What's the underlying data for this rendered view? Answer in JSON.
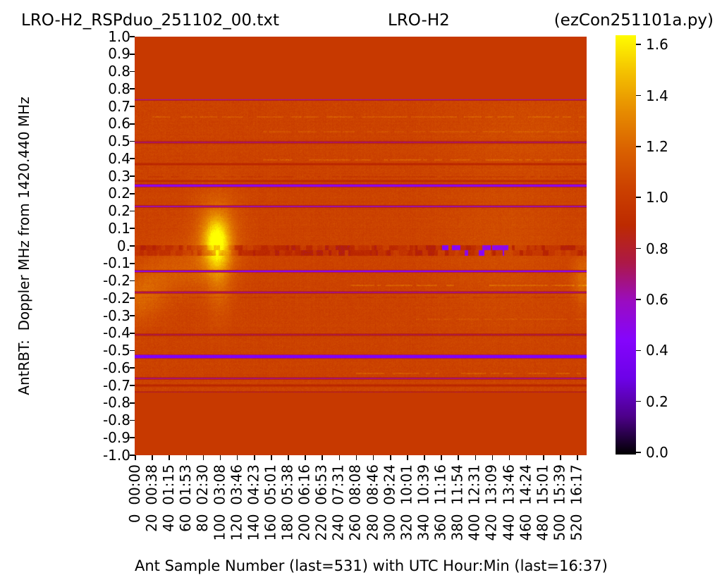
{
  "titles": {
    "left": "LRO-H2_RSPduo_251102_00.txt",
    "center": "LRO-H2",
    "right": "(ezCon251101a.py)"
  },
  "axes": {
    "y_label": "AntRBT:  Doppler MHz from 1420.440 MHz",
    "x_label": "Ant Sample Number (last=531) with UTC Hour:Min (last=16:37)"
  },
  "chart_data": {
    "type": "heatmap",
    "title": "LRO-H2",
    "source_file": "LRO-H2_RSPduo_251102_00.txt",
    "program": "ezCon251101a.py",
    "xlabel": "Ant Sample Number (last=531) with UTC Hour:Min (last=16:37)",
    "ylabel": "AntRBT:  Doppler MHz from 1420.440 MHz",
    "xlim": [
      0,
      531
    ],
    "ylim": [
      -1.0,
      1.0
    ],
    "last_sample": 531,
    "last_time": "16:37",
    "rest_freq_mhz": "1420.440",
    "colormap": "gnuplot",
    "vmin": 0.0,
    "vmax": 1.65,
    "y_tick_labels": [
      "1.0",
      "0.9",
      "0.8",
      "0.8",
      "0.7",
      "0.6",
      "0.5",
      "0.4",
      "0.3",
      "0.2",
      "0.2",
      "0.1",
      "0.",
      "-0.1",
      "-0.2",
      "-0.2",
      "-0.3",
      "-0.4",
      "-0.5",
      "-0.6",
      "-0.7",
      "-0.8",
      "-0.8",
      "-0.9",
      "-1.0"
    ],
    "x_tick_samples": [
      "0",
      "20",
      "40",
      "60",
      "80",
      "100",
      "120",
      "140",
      "160",
      "180",
      "200",
      "220",
      "240",
      "260",
      "280",
      "300",
      "320",
      "340",
      "360",
      "380",
      "400",
      "420",
      "440",
      "460",
      "480",
      "500",
      "520"
    ],
    "x_tick_times": [
      "00:00",
      "00:38",
      "01:15",
      "01:53",
      "02:30",
      "03:08",
      "03:46",
      "04:23",
      "05:01",
      "05:38",
      "06:16",
      "06:53",
      "07:31",
      "08:08",
      "08:46",
      "09:24",
      "10:01",
      "10:39",
      "11:16",
      "11:54",
      "12:31",
      "13:09",
      "13:46",
      "14:24",
      "15:01",
      "15:39",
      "16:17"
    ],
    "colorbar_tick_labels": [
      "1.6",
      "1.4",
      "1.2",
      "1.0",
      "0.8",
      "0.6",
      "0.4",
      "0.2",
      "0.0"
    ],
    "flat_background_value": 1.0,
    "noise_band_mhz": [
      -0.7,
      0.7
    ],
    "noise_mean_value": 1.05,
    "rfi_lines": [
      {
        "mhz": 0.7,
        "value": 0.58,
        "width": 1.2
      },
      {
        "mhz": 0.495,
        "value": 0.72,
        "width": 1.0
      },
      {
        "mhz": 0.39,
        "value": 0.88,
        "width": 1.2
      },
      {
        "mhz": 0.31,
        "value": 0.9,
        "width": 1.0
      },
      {
        "mhz": 0.288,
        "value": 0.5,
        "width": 1.2
      },
      {
        "mhz": 0.188,
        "value": 0.62,
        "width": 1.2
      },
      {
        "mhz": -0.121,
        "value": 0.47,
        "width": 1.3
      },
      {
        "mhz": -0.222,
        "value": 0.68,
        "width": 1.2
      },
      {
        "mhz": -0.425,
        "value": 0.76,
        "width": 1.2
      },
      {
        "mhz": -0.528,
        "value": 0.4,
        "width": 2.0
      },
      {
        "mhz": -0.632,
        "value": 0.7,
        "width": 1.2
      },
      {
        "mhz": -0.668,
        "value": 0.88,
        "width": 1.0
      },
      {
        "mhz": -0.7,
        "value": 0.78,
        "width": 1.0
      }
    ],
    "streak_rows": [
      {
        "mhz": 0.615,
        "amp": 0.1,
        "x0": 20,
        "x1": 531
      },
      {
        "mhz": 0.545,
        "amp": 0.07,
        "x0": 150,
        "x1": 531
      },
      {
        "mhz": 0.41,
        "amp": 0.11,
        "x0": 150,
        "x1": 531
      },
      {
        "mhz": 0.33,
        "amp": -0.06,
        "x0": 0,
        "x1": 531
      },
      {
        "mhz": -0.19,
        "amp": 0.12,
        "x0": 250,
        "x1": 531
      },
      {
        "mhz": -0.245,
        "amp": -0.05,
        "x0": 0,
        "x1": 531
      },
      {
        "mhz": -0.35,
        "amp": 0.06,
        "x0": 330,
        "x1": 531
      },
      {
        "mhz": -0.61,
        "amp": 0.1,
        "x0": 260,
        "x1": 531
      }
    ],
    "glows": [
      {
        "x": 96,
        "mhz": 0.02,
        "sx": 11,
        "sy": 0.085,
        "amp": 0.5
      },
      {
        "x": 96,
        "mhz": 0.04,
        "sx": 20,
        "sy": 0.16,
        "amp": 0.17
      },
      {
        "x": 99,
        "mhz": -0.16,
        "sx": 10,
        "sy": 0.13,
        "amp": 0.12
      },
      {
        "x": 55,
        "mhz": -0.11,
        "sx": 22,
        "sy": 0.085,
        "amp": 0.1
      },
      {
        "x": 20,
        "mhz": -0.2,
        "sx": 16,
        "sy": 0.09,
        "amp": 0.12
      },
      {
        "x": 2,
        "mhz": -0.26,
        "sx": 12,
        "sy": 0.08,
        "amp": 0.1
      },
      {
        "x": 527,
        "mhz": -0.16,
        "sx": 9,
        "sy": 0.085,
        "amp": 0.17
      },
      {
        "x": 430,
        "mhz": 0.0,
        "sx": 50,
        "sy": 0.3,
        "amp": 0.05
      },
      {
        "x": 470,
        "mhz": 0.55,
        "sx": 60,
        "sy": 0.12,
        "amp": 0.04
      }
    ],
    "center_band": {
      "mhz_top": 0.002,
      "mhz_bottom": -0.044,
      "purple_x0": 355,
      "purple_x1": 435
    }
  }
}
